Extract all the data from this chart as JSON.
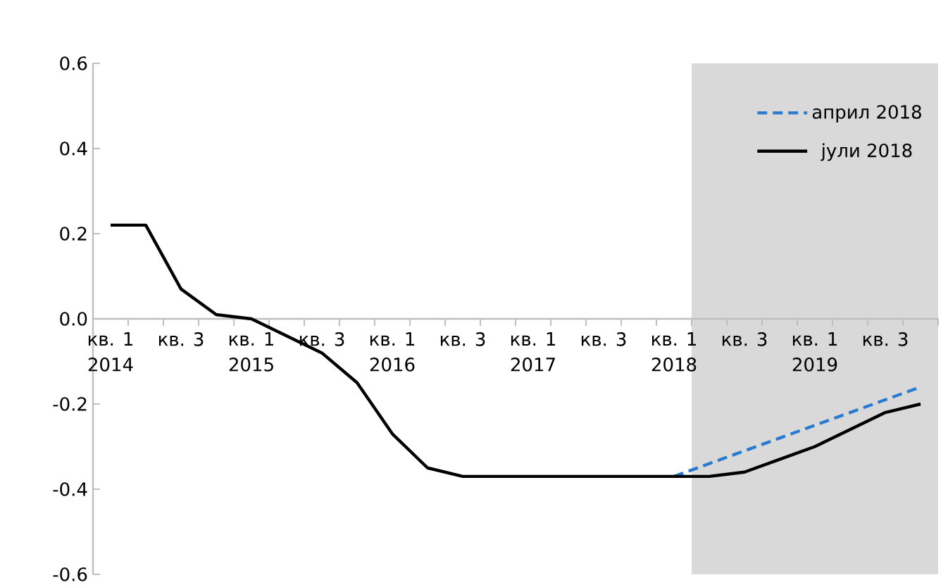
{
  "chart_data": {
    "type": "line",
    "categories": [
      "кв. 1",
      null,
      "кв. 3",
      null,
      "кв. 1",
      null,
      "кв. 3",
      null,
      "кв. 1",
      null,
      "кв. 3",
      null,
      "кв. 1",
      null,
      "кв. 3",
      null,
      "кв. 1",
      null,
      "кв. 3",
      null,
      "кв. 1",
      null,
      "кв. 3",
      null
    ],
    "annotations": [
      "2014",
      "2015",
      "2016",
      "2017",
      "2018",
      "2019"
    ],
    "series": [
      {
        "name": "април 2018",
        "color": "#2a7bd0",
        "line_style": "dashed",
        "values": [
          null,
          null,
          null,
          null,
          null,
          null,
          null,
          null,
          null,
          null,
          null,
          null,
          null,
          null,
          null,
          null,
          -0.37,
          -0.34,
          -0.31,
          -0.28,
          -0.25,
          -0.22,
          -0.19,
          -0.16
        ]
      },
      {
        "name": "јули 2018",
        "color": "#000000",
        "line_style": "solid",
        "values": [
          0.22,
          0.22,
          0.07,
          0.01,
          0.0,
          -0.04,
          -0.08,
          -0.15,
          -0.27,
          -0.35,
          -0.37,
          -0.37,
          -0.37,
          -0.37,
          -0.37,
          -0.37,
          -0.37,
          -0.37,
          -0.36,
          -0.33,
          -0.3,
          -0.26,
          -0.22,
          -0.2
        ]
      }
    ],
    "ylim": [
      -0.6,
      0.6
    ],
    "yticks": [
      -0.6,
      -0.4,
      -0.2,
      {
        "value": 0,
        "label": "0.0"
      },
      0.2,
      0.4,
      0.6
    ],
    "legend": "top right",
    "marker": "none"
  }
}
